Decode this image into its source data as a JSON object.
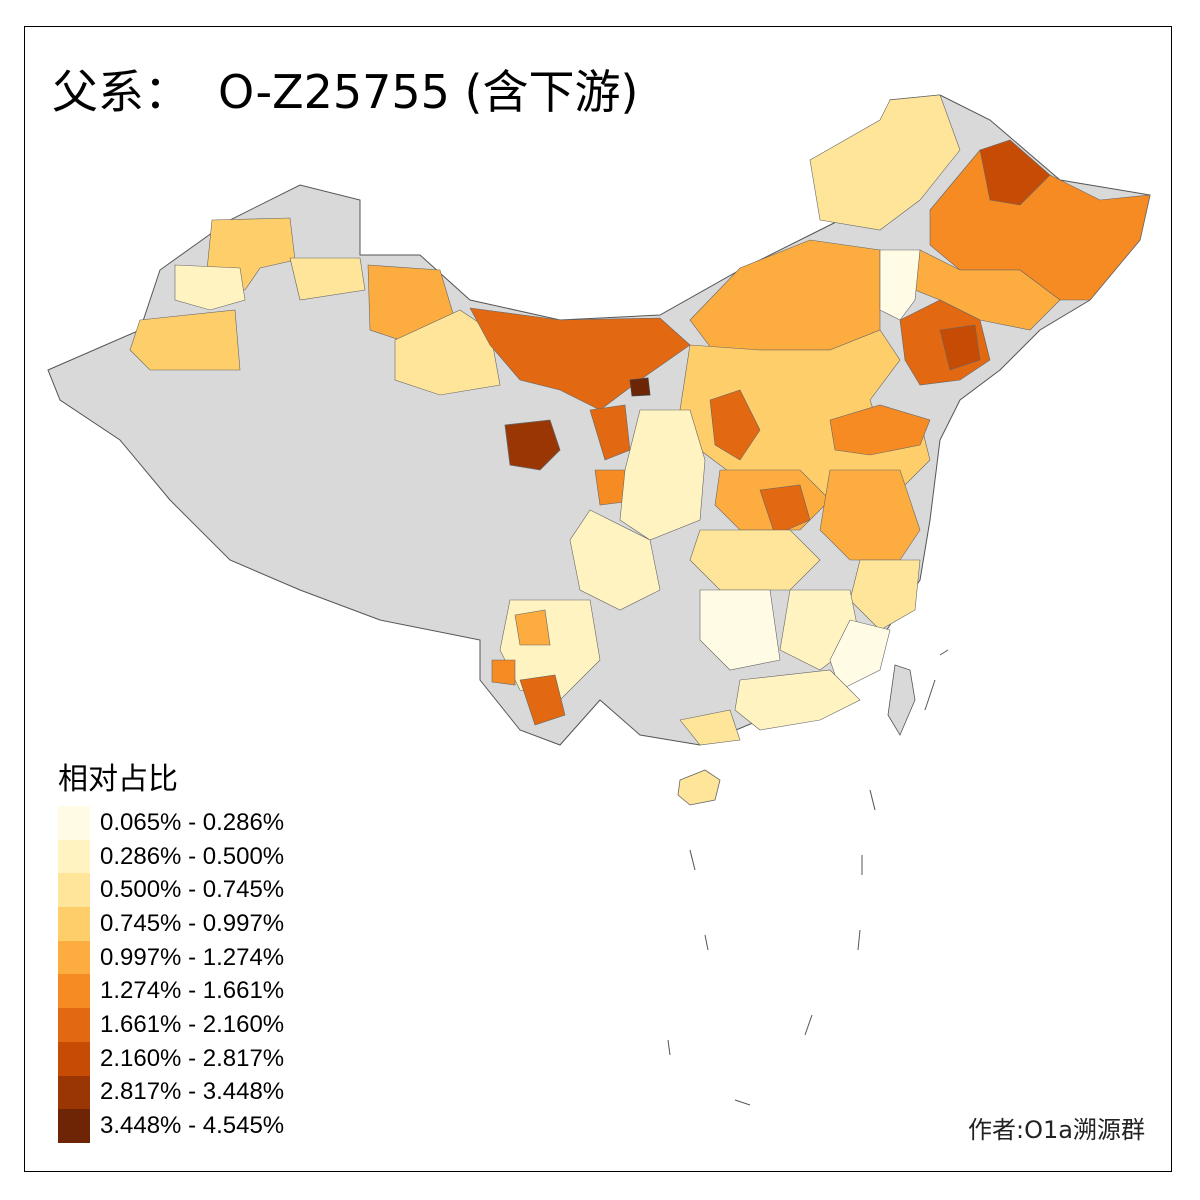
{
  "title": {
    "prefix": "父系：",
    "haplogroup": "O-Z25755 (含下游)"
  },
  "legend": {
    "title": "相对占比",
    "classes": [
      {
        "label": "0.065% - 0.286%",
        "color": "#fffbe5"
      },
      {
        "label": "0.286% - 0.500%",
        "color": "#fff3c2"
      },
      {
        "label": "0.500% - 0.745%",
        "color": "#fee59a"
      },
      {
        "label": "0.745% - 0.997%",
        "color": "#fece6a"
      },
      {
        "label": "0.997% - 1.274%",
        "color": "#fdad3f"
      },
      {
        "label": "1.274% - 1.661%",
        "color": "#f68b24"
      },
      {
        "label": "1.661% - 2.160%",
        "color": "#e26812"
      },
      {
        "label": "2.160% - 2.817%",
        "color": "#c64c06"
      },
      {
        "label": "2.817% - 3.448%",
        "color": "#9a3504"
      },
      {
        "label": "3.448% - 4.545%",
        "color": "#6e2505"
      }
    ]
  },
  "no_data_color": "#d9d9d9",
  "author": "作者:O1a溯源群"
}
